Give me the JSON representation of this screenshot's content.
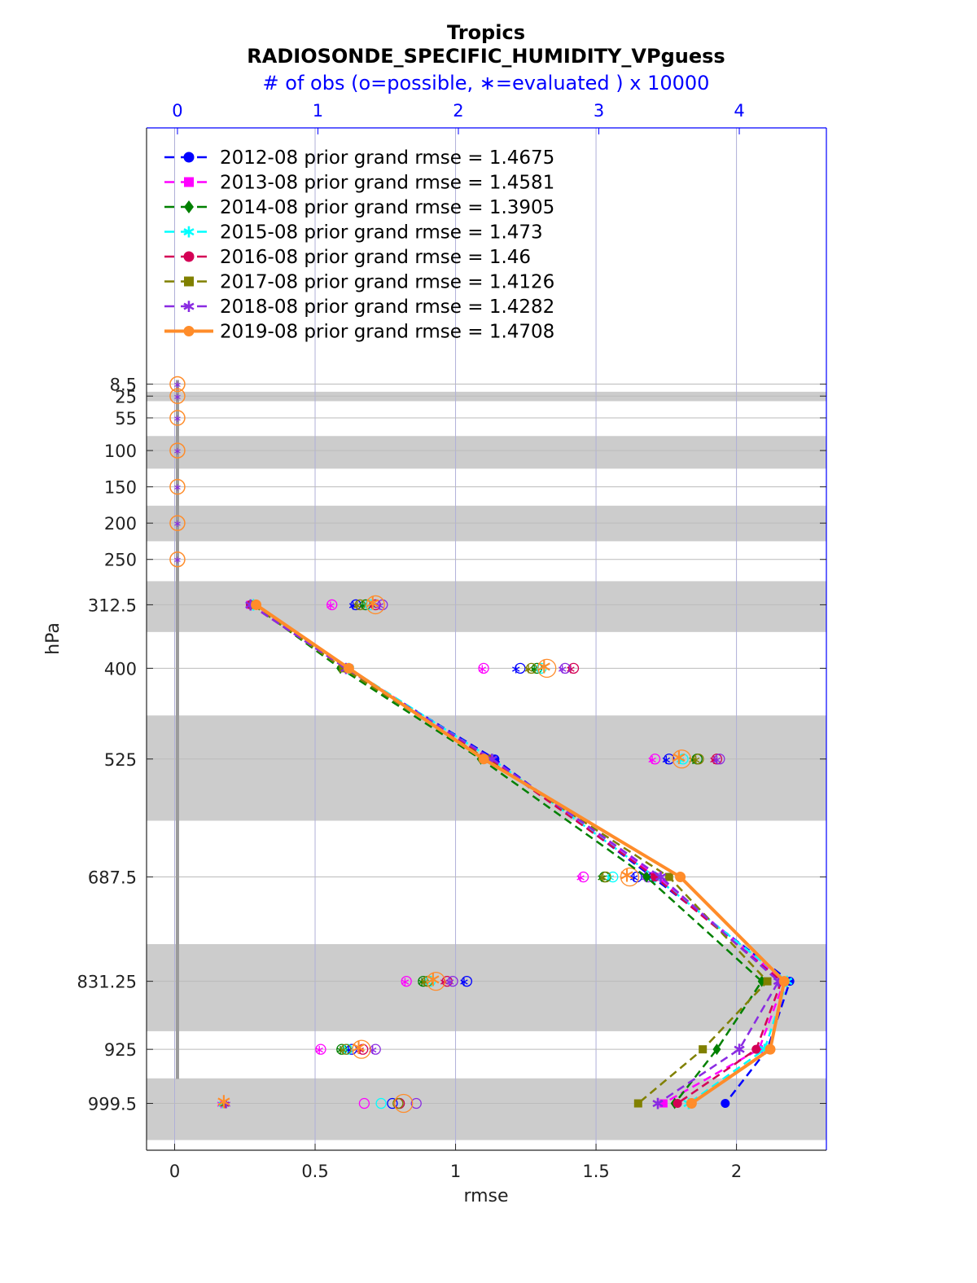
{
  "chart_data": {
    "type": "line",
    "title": "Tropics",
    "subtitle": "RADIOSONDE_SPECIFIC_HUMIDITY_VPguess",
    "top_axis_label": "# of obs (o=possible, ∗=evaluated ) x 10000",
    "xlabel": "rmse",
    "ylabel": "hPa",
    "xlim": [
      -0.1,
      2.32
    ],
    "top_xlim": [
      -0.22,
      4.62
    ],
    "x_ticks": [
      "0",
      "0.5",
      "1",
      "1.5",
      "2"
    ],
    "top_ticks": [
      "0",
      "1",
      "2",
      "3",
      "4"
    ],
    "levels": [
      8.5,
      25,
      55,
      100,
      150,
      200,
      250,
      312.5,
      400,
      525,
      687.5,
      831.25,
      925,
      999.5
    ],
    "level_labels": [
      "8.5",
      "25",
      "55",
      "100",
      "150",
      "200",
      "250",
      "312.5",
      "400",
      "525",
      "687.5",
      "831.25",
      "925",
      "999.5"
    ],
    "shaded_bands": [
      [
        19,
        32
      ],
      [
        80,
        125
      ],
      [
        176,
        225
      ],
      [
        280,
        350
      ],
      [
        465,
        610
      ],
      [
        780,
        900
      ],
      [
        965,
        1050
      ]
    ],
    "grid": true,
    "legend_position": "top-left",
    "series": [
      {
        "name": "2012-08",
        "legend": "2012-08 prior grand rmse = 1.4675",
        "color": "#0000ff",
        "marker": "circle",
        "dash": true,
        "rmse_levels": [
          312.5,
          400,
          525,
          687.5,
          831.25,
          925,
          999.5
        ],
        "rmse": [
          0.27,
          0.61,
          1.14,
          1.7,
          2.19,
          2.11,
          1.96
        ],
        "obs_possible": [
          1.27,
          2.44,
          3.5,
          3.27,
          2.06,
          1.24,
          1.53
        ],
        "obs_evaluated": [
          1.25,
          2.41,
          3.48,
          3.25,
          2.04,
          1.22,
          0.34
        ]
      },
      {
        "name": "2013-08",
        "legend": "2013-08 prior grand rmse = 1.4581",
        "color": "#ff00ff",
        "marker": "square",
        "dash": true,
        "rmse_levels": [
          312.5,
          400,
          525,
          687.5,
          831.25,
          925,
          999.5
        ],
        "rmse": [
          0.27,
          0.62,
          1.12,
          1.72,
          2.17,
          2.08,
          1.74
        ],
        "obs_possible": [
          1.1,
          2.18,
          3.4,
          2.89,
          1.63,
          1.02,
          1.33
        ],
        "obs_evaluated": [
          1.09,
          2.17,
          3.38,
          2.87,
          1.62,
          1.01,
          0.31
        ]
      },
      {
        "name": "2014-08",
        "legend": "2014-08 prior grand rmse = 1.3905",
        "color": "#008000",
        "marker": "diamond",
        "dash": true,
        "rmse_levels": [
          312.5,
          400,
          525,
          687.5,
          831.25,
          925,
          999.5
        ],
        "rmse": [
          0.28,
          0.59,
          1.09,
          1.68,
          2.09,
          1.93,
          1.78
        ],
        "obs_possible": [
          1.34,
          2.56,
          3.7,
          3.04,
          1.75,
          1.17,
          1.58
        ],
        "obs_evaluated": [
          1.32,
          2.54,
          3.67,
          3.02,
          1.74,
          1.16,
          0.32
        ]
      },
      {
        "name": "2015-08",
        "legend": "2015-08 prior grand rmse = 1.473",
        "color": "#00ffff",
        "marker": "star",
        "dash": true,
        "rmse_levels": [
          312.5,
          400,
          525,
          687.5,
          831.25,
          925,
          999.5
        ],
        "rmse": [
          0.28,
          0.62,
          1.13,
          1.71,
          2.18,
          2.1,
          1.83
        ],
        "obs_possible": [
          1.37,
          2.59,
          3.6,
          3.1,
          1.8,
          1.21,
          1.45
        ],
        "obs_evaluated": [
          1.35,
          2.57,
          3.58,
          3.08,
          1.78,
          1.19,
          0.32
        ]
      },
      {
        "name": "2016-08",
        "legend": "2016-08 prior grand rmse = 1.46",
        "color": "#d40055",
        "marker": "circle",
        "dash": true,
        "rmse_levels": [
          312.5,
          400,
          525,
          687.5,
          831.25,
          925,
          999.5
        ],
        "rmse": [
          0.27,
          0.61,
          1.12,
          1.71,
          2.16,
          2.07,
          1.79
        ],
        "obs_possible": [
          1.41,
          2.82,
          3.84,
          3.39,
          1.92,
          1.32,
          1.58
        ],
        "obs_evaluated": [
          1.39,
          2.8,
          3.82,
          3.37,
          1.9,
          1.3,
          0.34
        ]
      },
      {
        "name": "2017-08",
        "legend": "2017-08 prior grand rmse = 1.4126",
        "color": "#808000",
        "marker": "square",
        "dash": true,
        "rmse_levels": [
          312.5,
          400,
          525,
          687.5,
          831.25,
          925,
          999.5
        ],
        "rmse": [
          0.28,
          0.6,
          1.11,
          1.76,
          2.11,
          1.88,
          1.65
        ],
        "obs_possible": [
          1.3,
          2.52,
          3.71,
          3.05,
          1.78,
          1.2,
          1.57
        ],
        "obs_evaluated": [
          1.28,
          2.5,
          3.69,
          3.03,
          1.76,
          1.18,
          0.33
        ]
      },
      {
        "name": "2018-08",
        "legend": "2018-08 prior grand rmse = 1.4282",
        "color": "#8a2be2",
        "marker": "star",
        "dash": true,
        "rmse_levels": [
          312.5,
          400,
          525,
          687.5,
          831.25,
          925,
          999.5
        ],
        "rmse": [
          0.27,
          0.61,
          1.13,
          1.73,
          2.15,
          2.01,
          1.72
        ],
        "obs_possible": [
          1.46,
          2.76,
          3.86,
          3.35,
          1.96,
          1.41,
          1.7
        ],
        "obs_evaluated": [
          1.44,
          2.74,
          3.84,
          3.33,
          1.94,
          1.39,
          0.35
        ]
      },
      {
        "name": "2019-08",
        "legend": "2019-08 prior grand rmse = 1.4708",
        "color": "#ff8c2a",
        "marker": "circle",
        "dash": false,
        "rmse_levels": [
          312.5,
          400,
          525,
          687.5,
          831.25,
          925,
          999.5
        ],
        "rmse": [
          0.29,
          0.62,
          1.1,
          1.8,
          2.17,
          2.12,
          1.84
        ],
        "obs_possible": [
          1.41,
          2.63,
          3.59,
          3.22,
          1.84,
          1.31,
          1.61
        ],
        "obs_evaluated": [
          1.39,
          2.61,
          3.57,
          3.2,
          1.82,
          1.29,
          0.33
        ]
      }
    ]
  }
}
